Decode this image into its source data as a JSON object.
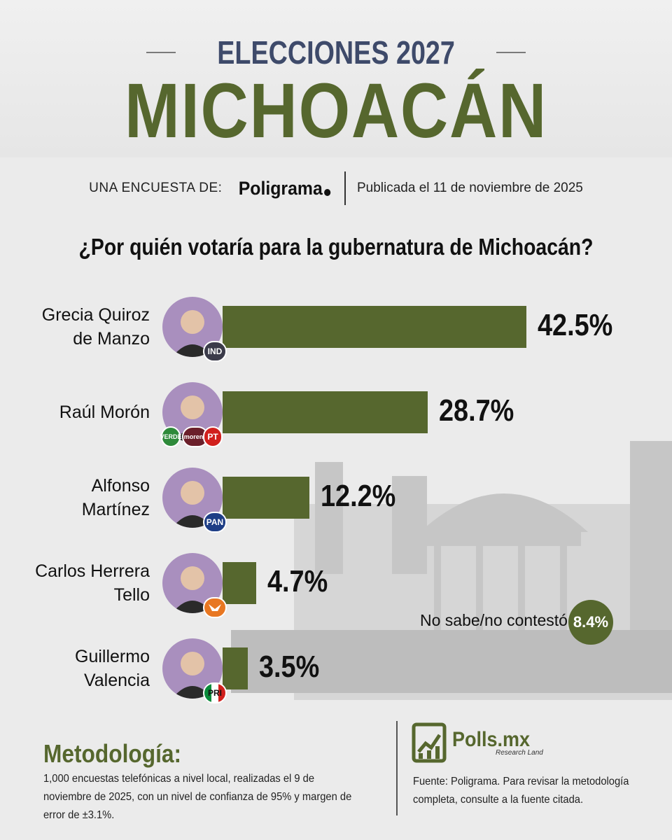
{
  "header": {
    "kicker": "ELECCIONES 2027",
    "title": "MICHOACÁN",
    "survey_label": "UNA ENCUESTA DE:",
    "pollster": "Poligrama",
    "published": "Publicada el 11 de noviembre de 2025"
  },
  "colors": {
    "accent_green": "#56672e",
    "title_navy": "#3e4a6a",
    "avatar_purple": "#a98fbe"
  },
  "chart_data": {
    "type": "bar",
    "orientation": "horizontal",
    "title": "¿Por quién votaría para la gubernatura de Michoacán?",
    "categories": [
      "Grecia Quiroz de Manzo",
      "Raúl Morón",
      "Alfonso Martínez",
      "Carlos Herrera Tello",
      "Guillermo Valencia"
    ],
    "name_lines": [
      [
        "Grecia Quiroz",
        "de Manzo"
      ],
      [
        "Raúl Morón"
      ],
      [
        "Alfonso",
        "Martínez"
      ],
      [
        "Carlos Herrera",
        "Tello"
      ],
      [
        "Guillermo",
        "Valencia"
      ]
    ],
    "values": [
      42.5,
      28.7,
      12.2,
      4.7,
      3.5
    ],
    "value_labels": [
      "42.5%",
      "28.7%",
      "12.2%",
      "4.7%",
      "3.5%"
    ],
    "parties": [
      [
        "IND"
      ],
      [
        "VERDE",
        "morena",
        "PT"
      ],
      [
        "PAN"
      ],
      [
        "MC"
      ],
      [
        "PRI"
      ]
    ],
    "party_icons": [
      [
        "ind-icon"
      ],
      [
        "verde-icon",
        "morena-icon",
        "pt-icon"
      ],
      [
        "pan-icon"
      ],
      [
        "movimiento-ciudadano-icon"
      ],
      [
        "pri-icon"
      ]
    ],
    "no_answer": {
      "label": "No sabe/no contestó",
      "value": 8.4,
      "value_label": "8.4%"
    },
    "grid": false,
    "legend": "none"
  },
  "footer": {
    "method_title": "Metodología:",
    "method_text": "1,000 encuestas telefónicas a nivel local, realizadas el 9 de noviembre de 2025, con un nivel de confianza de 95% y margen de error de ±3.1%.",
    "brand": "Polls.mx",
    "brand_sub": "Research Land",
    "source": "Fuente: Poligrama. Para revisar la metodología completa, consulte a la fuente citada."
  }
}
